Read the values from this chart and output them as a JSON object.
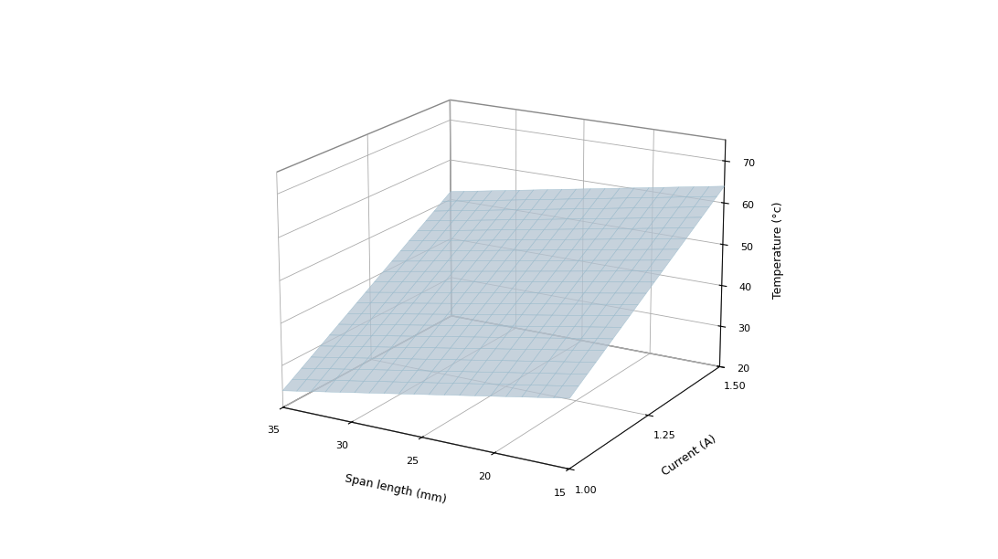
{
  "xlabel": "Span length (mm)",
  "ylabel": "Current (A)",
  "zlabel": "Temperature (°c)",
  "span_range": [
    15,
    35
  ],
  "current_range": [
    1.0,
    1.5
  ],
  "temp_range": [
    20,
    75
  ],
  "surface_color": "#ccdded",
  "surface_edge_color": "#99bbcc",
  "surface_alpha": 0.75,
  "figsize": [
    10.92,
    6.12
  ],
  "dpi": 100,
  "zticks": [
    20,
    30,
    40,
    50,
    60,
    70
  ],
  "span_ticks": [
    35,
    30,
    25,
    20,
    15
  ],
  "current_ticks": [
    1.0,
    1.25,
    1.5
  ],
  "elev": 18,
  "azim": -60,
  "n_grid": 20,
  "pane_color": [
    1.0,
    1.0,
    1.0,
    1.0
  ],
  "grid_color": "#aaaaaa",
  "axis_color": "#111111"
}
